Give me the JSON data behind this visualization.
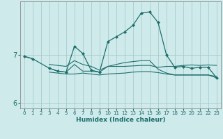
{
  "title": "",
  "xlabel": "Humidex (Indice chaleur)",
  "background_color": "#ceeaea",
  "line_color": "#1e6e6e",
  "grid_color": "#aacccc",
  "x_values": [
    0,
    1,
    2,
    3,
    4,
    5,
    6,
    7,
    8,
    9,
    10,
    11,
    12,
    13,
    14,
    15,
    16,
    17,
    18,
    19,
    20,
    21,
    22,
    23
  ],
  "series1": [
    6.97,
    6.92,
    null,
    6.8,
    6.78,
    6.76,
    6.88,
    6.8,
    6.76,
    6.68,
    6.76,
    6.76,
    6.76,
    6.77,
    6.78,
    6.78,
    6.74,
    6.76,
    6.76,
    6.78,
    6.79,
    6.78,
    6.79,
    6.78
  ],
  "series2": [
    null,
    null,
    null,
    6.72,
    6.66,
    6.64,
    6.8,
    6.66,
    6.66,
    6.64,
    6.76,
    6.8,
    6.84,
    6.86,
    6.88,
    6.88,
    6.7,
    6.62,
    6.58,
    6.58,
    6.58,
    6.58,
    6.58,
    6.55
  ],
  "series3": [
    null,
    null,
    null,
    6.64,
    6.62,
    6.6,
    6.6,
    6.62,
    6.6,
    6.58,
    6.6,
    6.61,
    6.62,
    6.64,
    6.65,
    6.65,
    6.63,
    6.6,
    6.58,
    6.58,
    6.58,
    6.58,
    6.58,
    6.52
  ],
  "series4_x": [
    0,
    1,
    3,
    4,
    5,
    6,
    7,
    8,
    9,
    10,
    11,
    12,
    13,
    14,
    15,
    16,
    17,
    18,
    19,
    20,
    21,
    22,
    23
  ],
  "series4": [
    6.97,
    6.92,
    6.72,
    6.66,
    6.64,
    7.18,
    7.03,
    6.68,
    6.64,
    7.28,
    7.38,
    7.48,
    7.62,
    7.88,
    7.9,
    7.68,
    7.0,
    6.74,
    6.76,
    6.72,
    6.74,
    6.74,
    6.52
  ],
  "ylim": [
    5.88,
    8.12
  ],
  "yticks": [
    6,
    7
  ],
  "xlim": [
    -0.5,
    23.5
  ]
}
